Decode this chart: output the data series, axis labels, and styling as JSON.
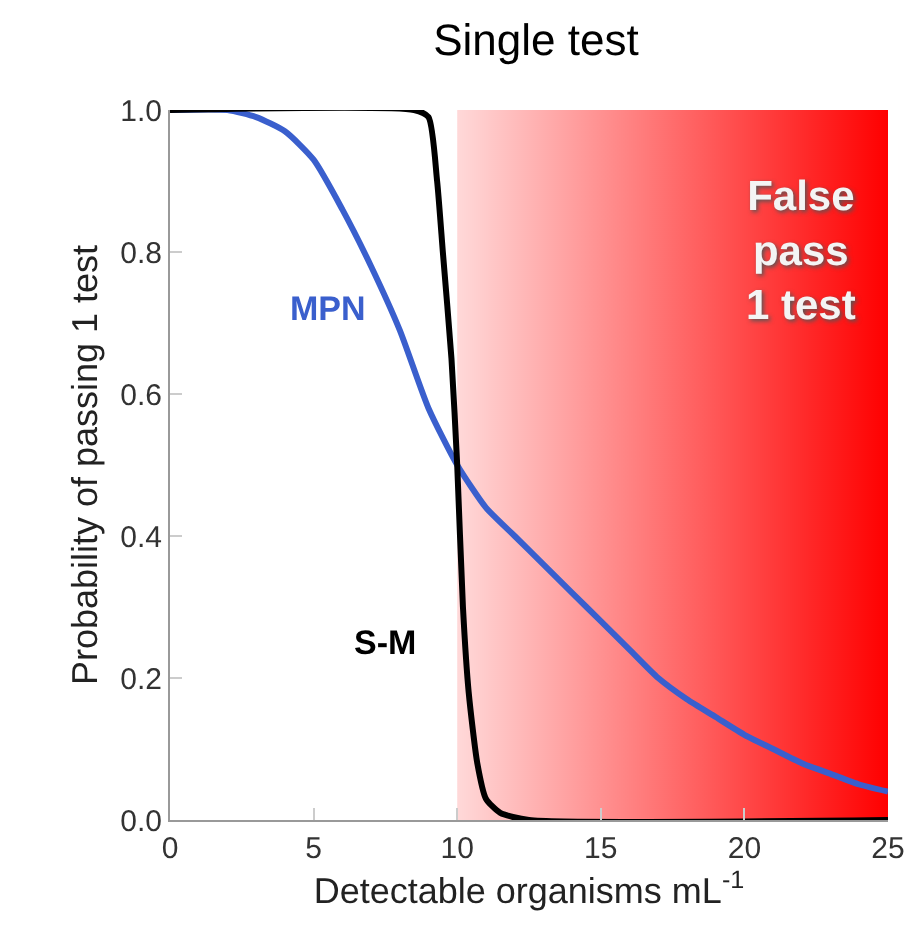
{
  "chart_data": {
    "type": "line",
    "title": "Single test",
    "xlabel": "Detectable organisms mL$^{-1}$",
    "ylabel": "Probability of passing 1 test",
    "xlim": [
      0,
      25
    ],
    "xticks": [
      0,
      5,
      10,
      15,
      20,
      25
    ],
    "ylim": [
      0,
      1
    ],
    "yticks": [
      {
        "value": 0,
        "label": "0.0"
      },
      {
        "value": 0.2,
        "label": "0.2"
      },
      {
        "value": 0.4,
        "label": "0.4"
      },
      {
        "value": 0.6,
        "label": "0.6"
      },
      {
        "value": 0.8,
        "label": "0.8"
      },
      {
        "value": 1,
        "label": "1.0"
      }
    ],
    "legend": false,
    "bands": [
      {
        "axis": "x",
        "from": 10,
        "to": 25,
        "label": "False\npass\n1 test",
        "color": "#ff0000"
      }
    ],
    "series": [
      {
        "name": "MPN",
        "color": "#3a5fcd",
        "x": [
          0,
          2,
          3,
          4,
          5,
          6,
          7,
          8,
          9,
          10,
          11,
          12,
          13,
          14,
          15,
          16,
          17,
          18,
          19,
          20,
          21,
          22,
          23,
          24,
          25
        ],
        "values": [
          1,
          1,
          0.99,
          0.97,
          0.93,
          0.86,
          0.78,
          0.69,
          0.58,
          0.5,
          0.44,
          0.4,
          0.36,
          0.32,
          0.28,
          0.24,
          0.2,
          0.17,
          0.145,
          0.12,
          0.1,
          0.08,
          0.065,
          0.05,
          0.04
        ]
      },
      {
        "name": "S-M",
        "color": "#000000",
        "x": [
          0,
          8.5,
          9,
          9.3,
          9.5,
          9.8,
          10,
          10.2,
          10.4,
          10.7,
          11,
          11.5,
          12.5,
          25
        ],
        "values": [
          1,
          1,
          0.99,
          0.9,
          0.8,
          0.65,
          0.5,
          0.3,
          0.18,
          0.08,
          0.03,
          0.01,
          0,
          0
        ]
      }
    ]
  }
}
